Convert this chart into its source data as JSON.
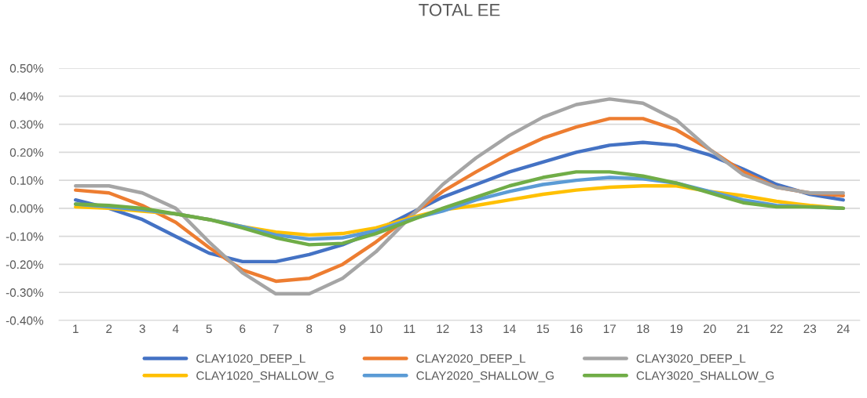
{
  "chart_data": {
    "type": "line",
    "title": "TOTAL EE",
    "categories": [
      "1",
      "2",
      "3",
      "4",
      "5",
      "6",
      "7",
      "8",
      "9",
      "10",
      "11",
      "12",
      "13",
      "14",
      "15",
      "16",
      "17",
      "18",
      "19",
      "20",
      "21",
      "22",
      "23",
      "24"
    ],
    "series": [
      {
        "name": "CLAY1020_DEEP_L",
        "color": "#4472c4",
        "values": [
          0.03,
          0.0,
          -0.04,
          -0.1,
          -0.16,
          -0.19,
          -0.19,
          -0.165,
          -0.13,
          -0.08,
          -0.02,
          0.04,
          0.085,
          0.13,
          0.165,
          0.2,
          0.225,
          0.235,
          0.225,
          0.19,
          0.14,
          0.085,
          0.05,
          0.03
        ]
      },
      {
        "name": "CLAY2020_DEEP_L",
        "color": "#ed7d31",
        "values": [
          0.065,
          0.055,
          0.01,
          -0.05,
          -0.14,
          -0.22,
          -0.26,
          -0.25,
          -0.2,
          -0.12,
          -0.03,
          0.06,
          0.13,
          0.195,
          0.25,
          0.29,
          0.32,
          0.32,
          0.28,
          0.21,
          0.13,
          0.075,
          0.055,
          0.045
        ]
      },
      {
        "name": "CLAY3020_DEEP_L",
        "color": "#a5a5a5",
        "values": [
          0.08,
          0.08,
          0.055,
          0.0,
          -0.12,
          -0.23,
          -0.305,
          -0.305,
          -0.25,
          -0.155,
          -0.035,
          0.085,
          0.18,
          0.26,
          0.325,
          0.37,
          0.39,
          0.375,
          0.315,
          0.21,
          0.12,
          0.075,
          0.055,
          0.055
        ]
      },
      {
        "name": "CLAY1020_SHALLOW_G",
        "color": "#ffc000",
        "values": [
          0.005,
          0.0,
          -0.01,
          -0.02,
          -0.04,
          -0.065,
          -0.085,
          -0.095,
          -0.09,
          -0.07,
          -0.035,
          -0.005,
          0.01,
          0.03,
          0.05,
          0.065,
          0.075,
          0.08,
          0.08,
          0.06,
          0.045,
          0.025,
          0.01,
          0.0
        ]
      },
      {
        "name": "CLAY2020_SHALLOW_G",
        "color": "#5b9bd5",
        "values": [
          0.015,
          0.005,
          -0.005,
          -0.02,
          -0.04,
          -0.065,
          -0.095,
          -0.11,
          -0.105,
          -0.08,
          -0.04,
          -0.01,
          0.03,
          0.06,
          0.085,
          0.1,
          0.11,
          0.105,
          0.09,
          0.06,
          0.03,
          0.01,
          0.005,
          0.0
        ]
      },
      {
        "name": "CLAY3020_SHALLOW_G",
        "color": "#70ad47",
        "values": [
          0.015,
          0.01,
          0.0,
          -0.02,
          -0.04,
          -0.07,
          -0.105,
          -0.13,
          -0.125,
          -0.09,
          -0.045,
          0.0,
          0.04,
          0.08,
          0.11,
          0.13,
          0.13,
          0.115,
          0.09,
          0.055,
          0.02,
          0.005,
          0.005,
          0.0
        ]
      }
    ],
    "ylim": [
      -0.4,
      0.5
    ],
    "yticks": [
      {
        "value": -0.4,
        "label": "-0.40%"
      },
      {
        "value": -0.3,
        "label": "-0.30%"
      },
      {
        "value": -0.2,
        "label": "-0.20%"
      },
      {
        "value": -0.1,
        "label": "-0.10%"
      },
      {
        "value": 0.0,
        "label": "0.00%"
      },
      {
        "value": 0.1,
        "label": "0.10%"
      },
      {
        "value": 0.2,
        "label": "0.20%"
      },
      {
        "value": 0.3,
        "label": "0.30%"
      },
      {
        "value": 0.4,
        "label": "0.40%"
      },
      {
        "value": 0.5,
        "label": "0.50%"
      }
    ],
    "grid": "y",
    "legend": "bottom",
    "marker": "none",
    "line_style": "solid"
  }
}
